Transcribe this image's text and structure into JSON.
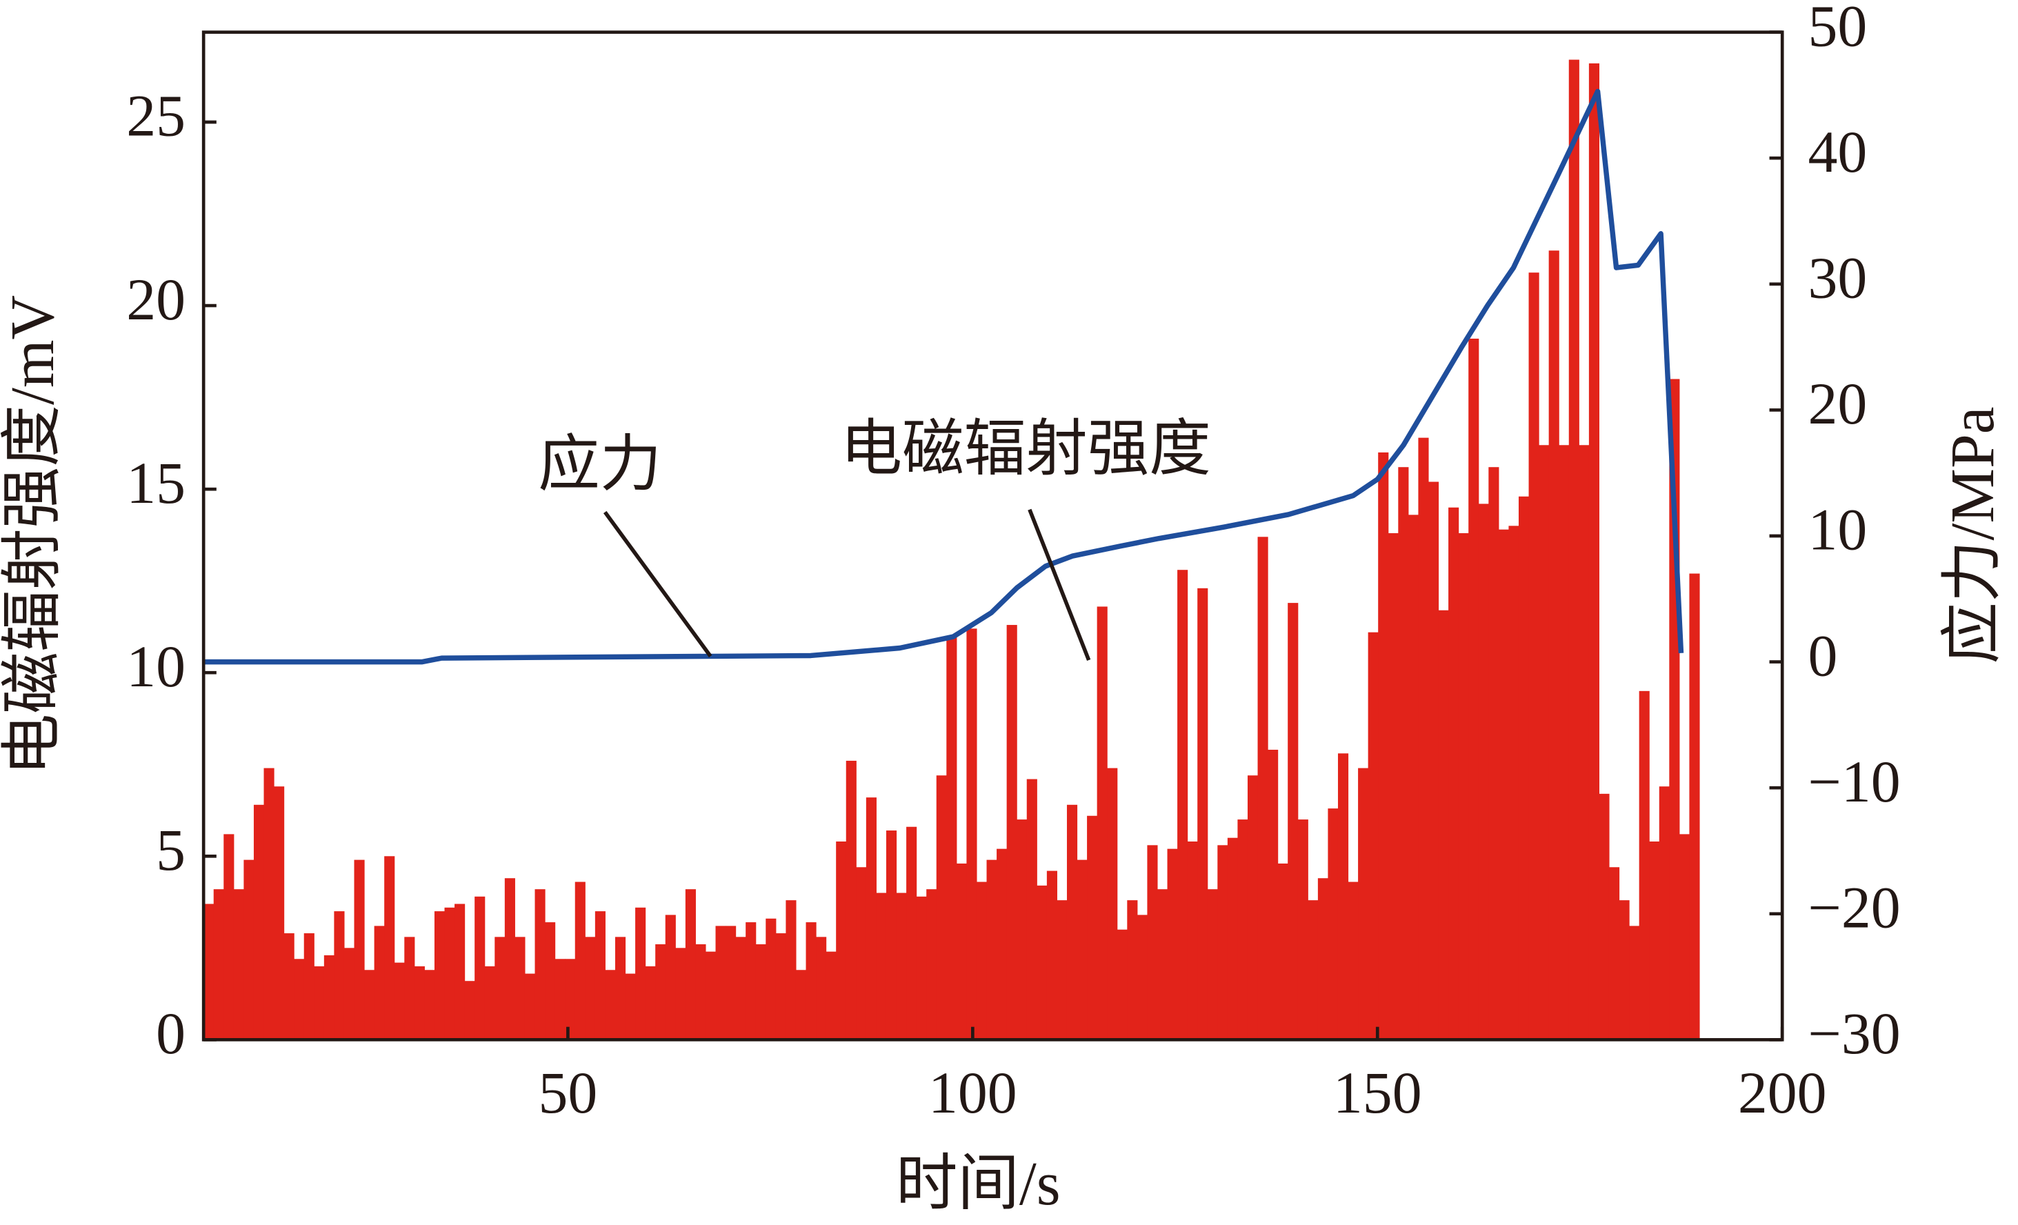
{
  "chart_data": {
    "type": "bar_line",
    "xlabel": "时间/s",
    "ylabel": "电磁辐射强度/mV",
    "y2label": "应力/MPa",
    "annotations": [
      "应力",
      "电磁辐射强度"
    ],
    "xlim": [
      5,
      200
    ],
    "xticks": [
      50,
      100,
      150,
      200
    ],
    "ylim": [
      0,
      27.45
    ],
    "yticks": [
      0,
      5,
      10,
      15,
      20,
      25
    ],
    "y2lim": [
      -30,
      50
    ],
    "y2ticks": [
      {
        "value": -30,
        "label": "−30"
      },
      {
        "value": -20,
        "label": "−20"
      },
      {
        "value": -10,
        "label": "−10"
      },
      0,
      10,
      20,
      30,
      40,
      50
    ],
    "series": [
      {
        "name": "电磁辐射强度",
        "type": "bar",
        "color": "#e2231a",
        "x": [
          5.0,
          6.24,
          7.48,
          8.72,
          9.96,
          11.2,
          12.44,
          13.68,
          14.92,
          16.16,
          17.4,
          18.64,
          19.88,
          21.12,
          22.36,
          23.6,
          24.84,
          26.08,
          27.32,
          28.56,
          29.8,
          31.04,
          32.28,
          33.52,
          34.76,
          36.0,
          37.24,
          38.48,
          39.72,
          40.96,
          42.2,
          43.44,
          44.68,
          45.92,
          47.16,
          48.4,
          49.64,
          50.88,
          52.12,
          53.36,
          54.6,
          55.84,
          57.08,
          58.32,
          59.56,
          60.8,
          62.04,
          63.28,
          64.52,
          65.76,
          67.0,
          68.24,
          69.48,
          70.72,
          71.96,
          73.2,
          74.44,
          75.68,
          76.92,
          78.16,
          79.4,
          80.64,
          81.88,
          83.12,
          84.36,
          85.6,
          86.84,
          88.08,
          89.32,
          90.56,
          91.8,
          93.04,
          94.28,
          95.52,
          96.76,
          98.0,
          99.24,
          100.48,
          101.72,
          102.96,
          104.2,
          105.44,
          106.68,
          107.92,
          109.16,
          110.4,
          111.64,
          112.88,
          114.12,
          115.36,
          116.6,
          117.84,
          119.08,
          120.32,
          121.56,
          122.8,
          124.04,
          125.28,
          126.52,
          127.76,
          129.0,
          130.24,
          131.48,
          132.72,
          133.96,
          135.2,
          136.44,
          137.68,
          138.92,
          140.16,
          141.4,
          142.64,
          143.88,
          145.12,
          146.36,
          147.6,
          148.84,
          150.08,
          151.32,
          152.56,
          153.8,
          155.04,
          156.28,
          157.52,
          158.76,
          160.0,
          161.24,
          162.48,
          163.72,
          164.96,
          166.2,
          167.44,
          168.68,
          169.92,
          171.16,
          172.4,
          173.64,
          174.88,
          176.12,
          177.36,
          178.6,
          179.84,
          181.08,
          182.32,
          183.56,
          184.8,
          186.04,
          187.28,
          188.52
        ],
        "values": [
          3.7,
          4.1,
          5.6,
          4.1,
          4.9,
          6.4,
          7.4,
          6.9,
          2.9,
          2.2,
          2.9,
          2.0,
          2.3,
          3.5,
          2.5,
          4.9,
          1.9,
          3.1,
          5.0,
          2.1,
          2.8,
          2.0,
          1.9,
          3.5,
          3.6,
          3.7,
          1.6,
          3.9,
          2.0,
          2.8,
          4.4,
          2.8,
          1.8,
          4.1,
          3.2,
          2.2,
          2.2,
          4.3,
          2.8,
          3.5,
          1.9,
          2.8,
          1.8,
          3.6,
          2.0,
          2.6,
          3.4,
          2.5,
          4.1,
          2.6,
          2.4,
          3.1,
          3.1,
          2.8,
          3.2,
          2.6,
          3.3,
          2.9,
          3.8,
          1.9,
          3.2,
          2.8,
          2.4,
          5.4,
          7.6,
          4.7,
          6.6,
          4.0,
          5.7,
          4.0,
          5.8,
          3.9,
          4.1,
          7.2,
          11.0,
          4.8,
          11.2,
          4.3,
          4.9,
          5.2,
          11.3,
          6.0,
          7.1,
          4.2,
          4.6,
          3.8,
          6.4,
          4.9,
          6.1,
          11.8,
          7.4,
          3.0,
          3.8,
          3.4,
          5.3,
          4.1,
          5.2,
          12.8,
          5.4,
          12.3,
          4.1,
          5.3,
          5.5,
          6.0,
          7.2,
          13.7,
          7.9,
          4.8,
          11.9,
          6.0,
          3.8,
          4.4,
          6.3,
          7.8,
          4.3,
          7.4,
          11.1,
          16.0,
          13.8,
          15.6,
          14.3,
          16.4,
          15.2,
          11.7,
          14.5,
          13.8,
          19.1,
          14.6,
          15.6,
          13.9,
          14.0,
          14.8,
          20.9,
          16.2,
          21.5,
          16.2,
          26.7,
          16.2,
          26.6,
          6.7,
          4.7,
          3.8,
          3.1,
          9.5,
          5.4,
          6.9,
          18.0,
          5.6,
          12.7
        ]
      },
      {
        "name": "应力",
        "type": "line",
        "axis": "y2",
        "color": "#1f4e9c",
        "x": [
          5,
          32,
          34.4,
          80,
          91,
          97.6,
          102.3,
          105.5,
          109,
          112.3,
          118.3,
          123,
          131,
          139,
          147,
          150,
          153.2,
          160.4,
          163.6,
          166.8,
          172.4,
          177.2,
          179.5,
          182.2,
          185,
          187.5
        ],
        "values": [
          0,
          0,
          0.3,
          0.5,
          1.1,
          2.0,
          3.9,
          5.9,
          7.6,
          8.4,
          9.2,
          9.8,
          10.7,
          11.7,
          13.2,
          14.5,
          17.2,
          25,
          28.3,
          31.3,
          38.8,
          45.3,
          31.3,
          31.5,
          34,
          0.7
        ]
      }
    ]
  }
}
